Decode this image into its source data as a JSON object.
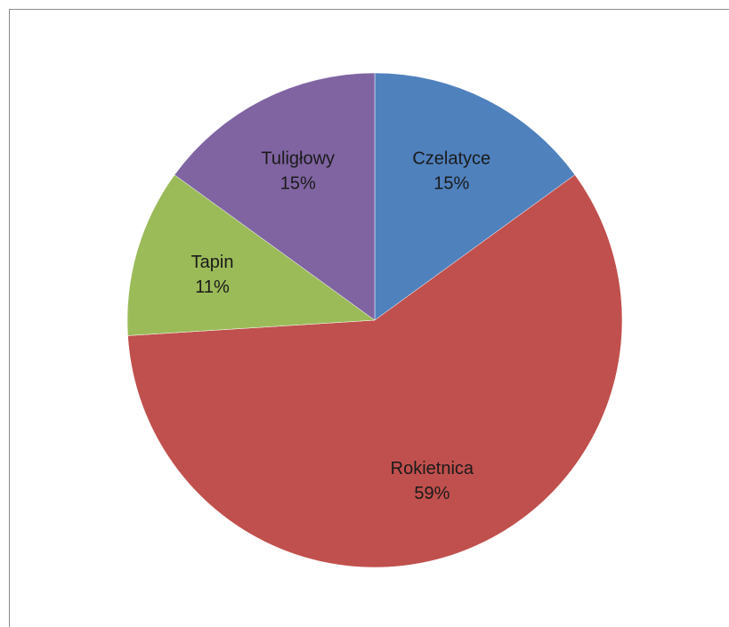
{
  "chart_data": {
    "type": "pie",
    "slices": [
      {
        "name": "Czelatyce",
        "value": 15,
        "label": "15%",
        "color": "#4f81bd"
      },
      {
        "name": "Rokietnica",
        "value": 59,
        "label": "59%",
        "color": "#c0504d"
      },
      {
        "name": "Tapin",
        "value": 11,
        "label": "11%",
        "color": "#9bbb59"
      },
      {
        "name": "Tuligłowy",
        "value": 15,
        "label": "15%",
        "color": "#8064a2"
      }
    ],
    "start": "12 o'clock",
    "direction": "clockwise",
    "legend": "none",
    "data_labels": "category name and percentage inside slices"
  }
}
